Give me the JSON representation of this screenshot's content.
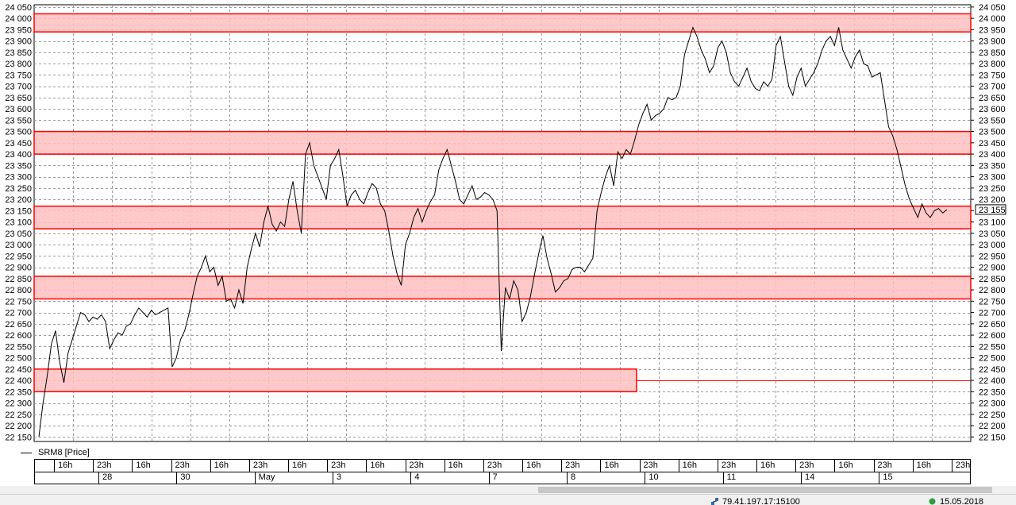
{
  "chart_data": {
    "type": "line",
    "series": [
      {
        "name": "SRM8 [Price]",
        "color": "#000000",
        "values": [
          22150,
          22300,
          22420,
          22560,
          22620,
          22480,
          22390,
          22520,
          22580,
          22640,
          22700,
          22690,
          22660,
          22680,
          22670,
          22690,
          22660,
          22540,
          22580,
          22610,
          22600,
          22640,
          22650,
          22690,
          22720,
          22700,
          22680,
          22710,
          22690,
          22700,
          22710,
          22720,
          22460,
          22500,
          22580,
          22620,
          22690,
          22780,
          22860,
          22900,
          22950,
          22880,
          22900,
          22820,
          22860,
          22750,
          22760,
          22720,
          22800,
          22740,
          22900,
          22980,
          23050,
          22990,
          23100,
          23170,
          23090,
          23060,
          23100,
          23080,
          23200,
          23280,
          23150,
          23050,
          23400,
          23450,
          23350,
          23300,
          23250,
          23200,
          23350,
          23380,
          23420,
          23300,
          23170,
          23220,
          23240,
          23200,
          23180,
          23230,
          23270,
          23250,
          23180,
          23150,
          23060,
          22950,
          22870,
          22820,
          23000,
          23050,
          23120,
          23160,
          23100,
          23150,
          23190,
          23220,
          23330,
          23380,
          23420,
          23350,
          23280,
          23200,
          23180,
          23220,
          23260,
          23200,
          23210,
          23230,
          23220,
          23200,
          23150,
          22530,
          22810,
          22760,
          22840,
          22800,
          22660,
          22700,
          22770,
          22870,
          22960,
          23040,
          22940,
          22870,
          22790,
          22810,
          22840,
          22850,
          22890,
          22900,
          22900,
          22880,
          22910,
          22940,
          23150,
          23230,
          23300,
          23350,
          23260,
          23410,
          23380,
          23420,
          23400,
          23460,
          23530,
          23580,
          23620,
          23550,
          23570,
          23580,
          23600,
          23650,
          23640,
          23650,
          23700,
          23840,
          23900,
          23960,
          23920,
          23860,
          23820,
          23760,
          23790,
          23870,
          23900,
          23850,
          23760,
          23720,
          23700,
          23740,
          23780,
          23720,
          23690,
          23680,
          23720,
          23700,
          23730,
          23880,
          23920,
          23810,
          23700,
          23660,
          23740,
          23780,
          23700,
          23730,
          23760,
          23800,
          23860,
          23900,
          23920,
          23880,
          23960,
          23860,
          23820,
          23780,
          23830,
          23860,
          23800,
          23790,
          23740,
          23750,
          23760,
          23640,
          23520,
          23480,
          23420,
          23340,
          23260,
          23200,
          23160,
          23120,
          23180,
          23140,
          23120,
          23150,
          23160,
          23140,
          23155
        ]
      }
    ],
    "y_ticks": [
      "22 150",
      "22 200",
      "22 250",
      "22 300",
      "22 350",
      "22 400",
      "22 450",
      "22 500",
      "22 550",
      "22 600",
      "22 650",
      "22 700",
      "22 750",
      "22 800",
      "22 850",
      "22 900",
      "22 950",
      "23 000",
      "23 050",
      "23 100",
      "23 150",
      "23 200",
      "23 250",
      "23 300",
      "23 350",
      "23 400",
      "23 450",
      "23 500",
      "23 550",
      "23 600",
      "23 650",
      "23 700",
      "23 750",
      "23 800",
      "23 850",
      "23 900",
      "23 950",
      "24 000",
      "24 050"
    ],
    "y_ticks_right": [
      "22 150",
      "22 200",
      "22 250",
      "22 300",
      "22 350",
      "22 400",
      "22 450",
      "22 500",
      "22 550",
      "22 600",
      "22 650",
      "22 700",
      "22 750",
      "22 800",
      "22 850",
      "22 900",
      "22 950",
      "23 000",
      "23 050",
      "23 100",
      "23 150",
      "23 200",
      "23 250",
      "23 300",
      "23 350",
      "23 400",
      "23 450",
      "23 500",
      "23 550",
      "23 600",
      "23 650",
      "23 700",
      "23 750",
      "23 800",
      "23 850",
      "23 900",
      "23 950",
      "24 000",
      "24 050"
    ],
    "ylim": [
      22130,
      24060
    ],
    "last_price_label": "23 155",
    "last_price_value": 23155,
    "zones": [
      {
        "from": 23940,
        "to": 24020,
        "extends_to_end": true
      },
      {
        "from": 23400,
        "to": 23500,
        "extends_to_end": true
      },
      {
        "from": 23070,
        "to": 23170,
        "extends_to_end": true
      },
      {
        "from": 22760,
        "to": 22860,
        "extends_to_end": true
      },
      {
        "from": 22350,
        "to": 22450,
        "extends_to_end": false
      }
    ],
    "support_line": {
      "value": 22400
    },
    "zone_fill": "#ffc0c0",
    "zone_border": "#ff0000",
    "grid": true,
    "legend_position": "bottom-left"
  },
  "time_axis": {
    "hours": [
      "16h",
      "23h",
      "16h",
      "23h",
      "16h",
      "23h",
      "16h",
      "23h",
      "16h",
      "23h",
      "16h",
      "23h",
      "16h",
      "23h",
      "16h",
      "23h",
      "16h",
      "23h",
      "16h",
      "23h",
      "16h",
      "23h",
      "16h",
      "23h"
    ],
    "dates": [
      "28",
      "30",
      "May",
      "3",
      "4",
      "7",
      "8",
      "10",
      "11",
      "14",
      "15"
    ]
  },
  "status": {
    "ip": "79.41.197.17:15100",
    "date": "15.05.2018"
  }
}
